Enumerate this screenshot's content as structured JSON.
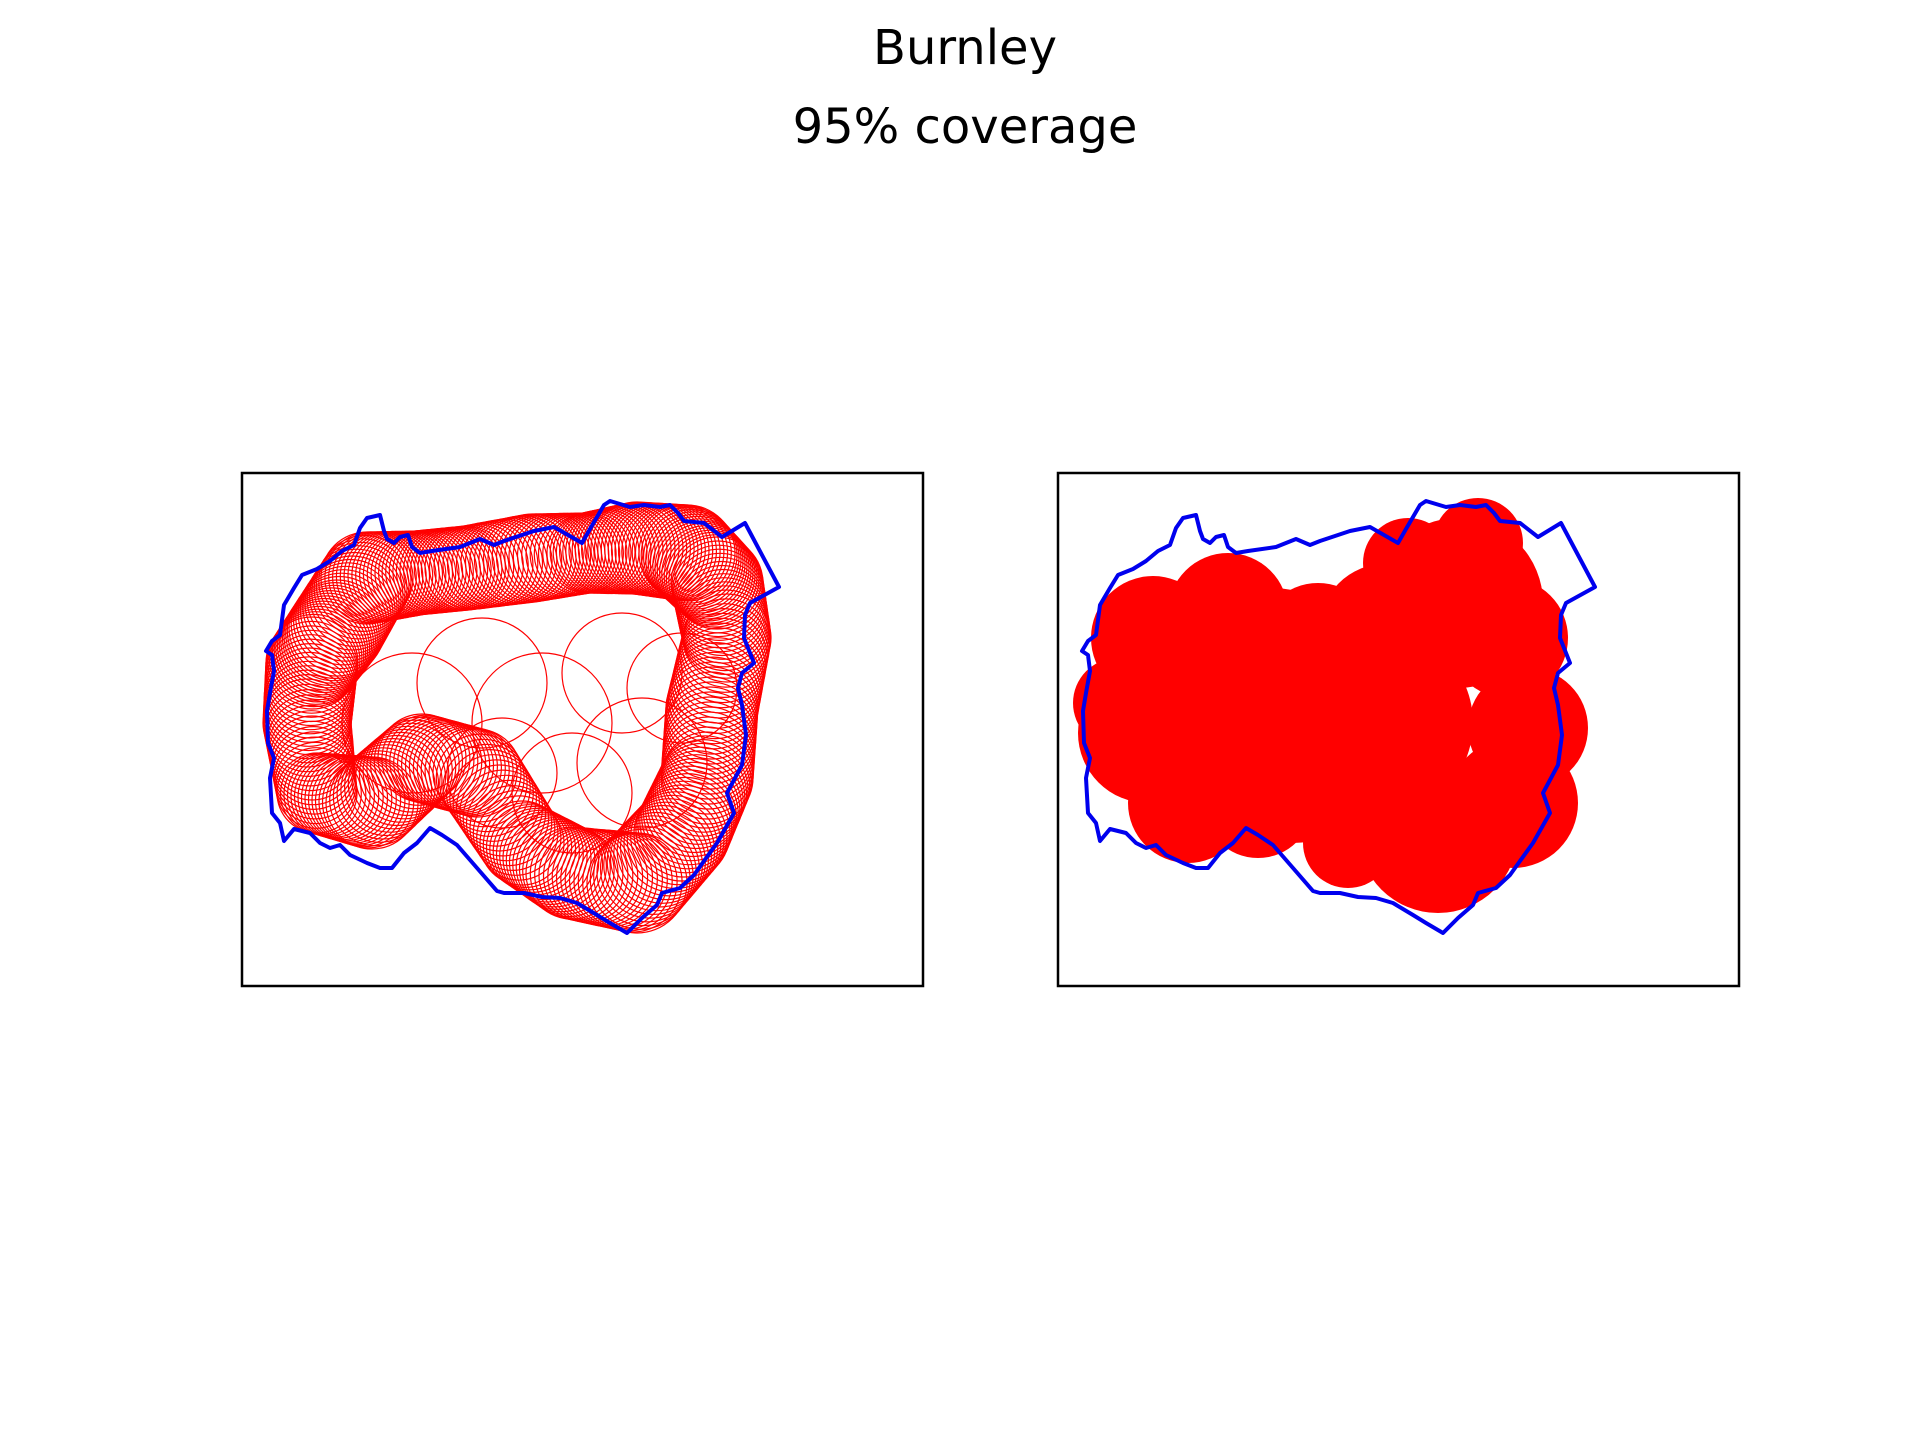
{
  "figure": {
    "title": "Burnley",
    "subtitle": "95% coverage"
  },
  "colors": {
    "boundary": "#0000ee",
    "coverage": "#ff0000",
    "frame": "#000000",
    "background": "#ffffff"
  },
  "panels": [
    {
      "style": "circle-outlines"
    },
    {
      "style": "filled-union"
    }
  ]
}
